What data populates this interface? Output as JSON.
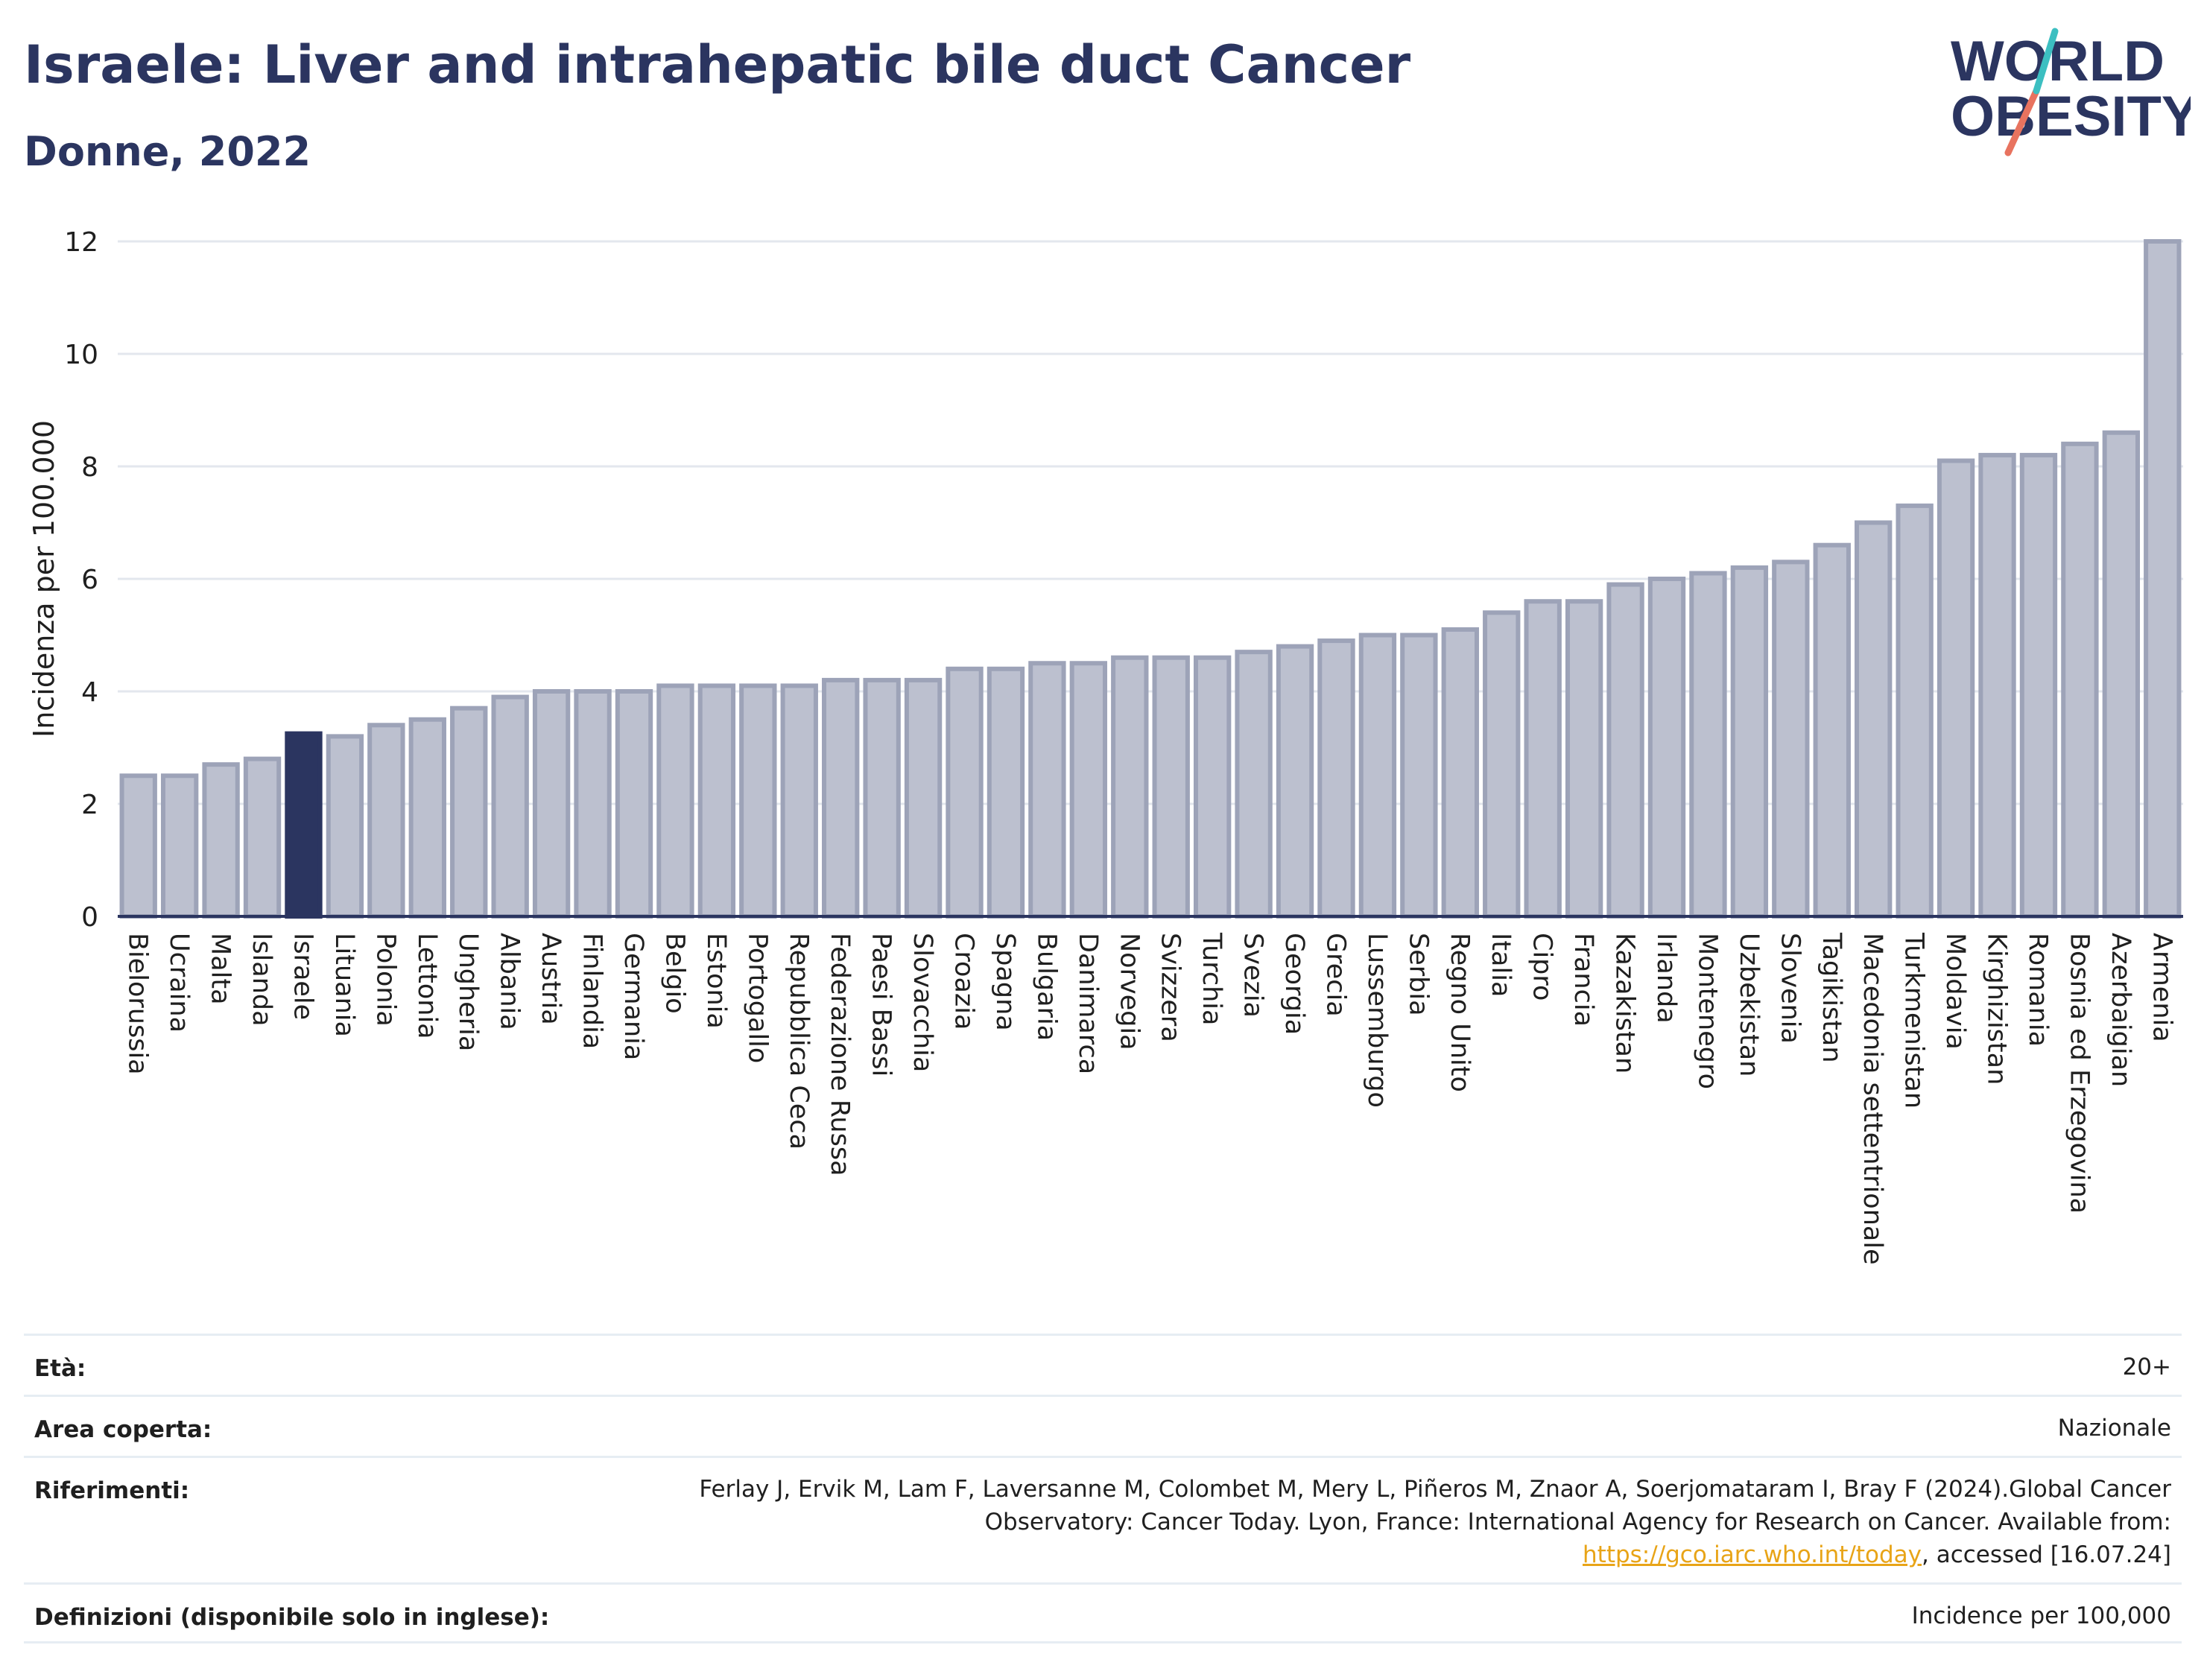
{
  "header": {
    "title": "Israele: Liver and intrahepatic bile duct Cancer",
    "subtitle": "Donne, 2022"
  },
  "logo": {
    "line1": "WORLD",
    "line2": "OBESITY",
    "colors": {
      "text": "#2b3560",
      "slash_teal": "#3cbfc1",
      "slash_coral": "#e8735f"
    }
  },
  "chart_data": {
    "type": "bar",
    "ylabel": "Incidenza per 100.000",
    "ylim": [
      0,
      12
    ],
    "yticks": [
      0,
      2,
      4,
      6,
      8,
      10,
      12
    ],
    "grid": true,
    "highlight": "Israele",
    "colors": {
      "bar": "#bcc0cf",
      "bar_edge": "#9da3b8",
      "highlight": "#2b3560",
      "grid": "#e3e7ee",
      "axis": "#2b3560"
    },
    "categories": [
      "Bielorussia",
      "Ucraina",
      "Malta",
      "Islanda",
      "Israele",
      "Lituania",
      "Polonia",
      "Lettonia",
      "Ungheria",
      "Albania",
      "Austria",
      "Finlandia",
      "Germania",
      "Belgio",
      "Estonia",
      "Portogallo",
      "Repubblica Ceca",
      "Federazione Russa",
      "Paesi Bassi",
      "Slovacchia",
      "Croazia",
      "Spagna",
      "Bulgaria",
      "Danimarca",
      "Norvegia",
      "Svizzera",
      "Turchia",
      "Svezia",
      "Georgia",
      "Grecia",
      "Lussemburgo",
      "Serbia",
      "Regno Unito",
      "Italia",
      "Cipro",
      "Francia",
      "Kazakistan",
      "Irlanda",
      "Montenegro",
      "Uzbekistan",
      "Slovenia",
      "Tagikistan",
      "Macedonia settentrionale",
      "Turkmenistan",
      "Moldavia",
      "Kirghizistan",
      "Romania",
      "Bosnia ed Erzegovina",
      "Azerbaigian",
      "Armenia"
    ],
    "values": [
      2.5,
      2.5,
      2.7,
      2.8,
      3.25,
      3.2,
      3.4,
      3.5,
      3.7,
      3.9,
      4.0,
      4.0,
      4.0,
      4.1,
      4.1,
      4.1,
      4.1,
      4.2,
      4.2,
      4.2,
      4.4,
      4.4,
      4.5,
      4.5,
      4.6,
      4.6,
      4.6,
      4.7,
      4.8,
      4.9,
      5.0,
      5.0,
      5.1,
      5.4,
      5.6,
      5.6,
      5.9,
      6.0,
      6.1,
      6.2,
      6.3,
      6.6,
      7.0,
      7.3,
      8.1,
      8.2,
      8.2,
      8.4,
      8.6,
      12.0
    ]
  },
  "meta": {
    "age_label": "Età:",
    "age_value": "20+",
    "area_label": "Area coperta:",
    "area_value": "Nazionale",
    "ref_label": "Riferimenti:",
    "ref_text_1": "Ferlay J, Ervik M, Lam F, Laversanne M, Colombet M, Mery L, Piñeros M, Znaor A, Soerjomataram I, Bray F (2024).Global Cancer Observatory: Cancer Today. Lyon, France: International Agency for Research on Cancer. Available from: ",
    "ref_link": "https://gco.iarc.who.int/today",
    "ref_text_2": ", accessed [16.07.24]",
    "def_label": "Definizioni (disponibile solo in inglese):",
    "def_value": "Incidence per 100,000"
  }
}
